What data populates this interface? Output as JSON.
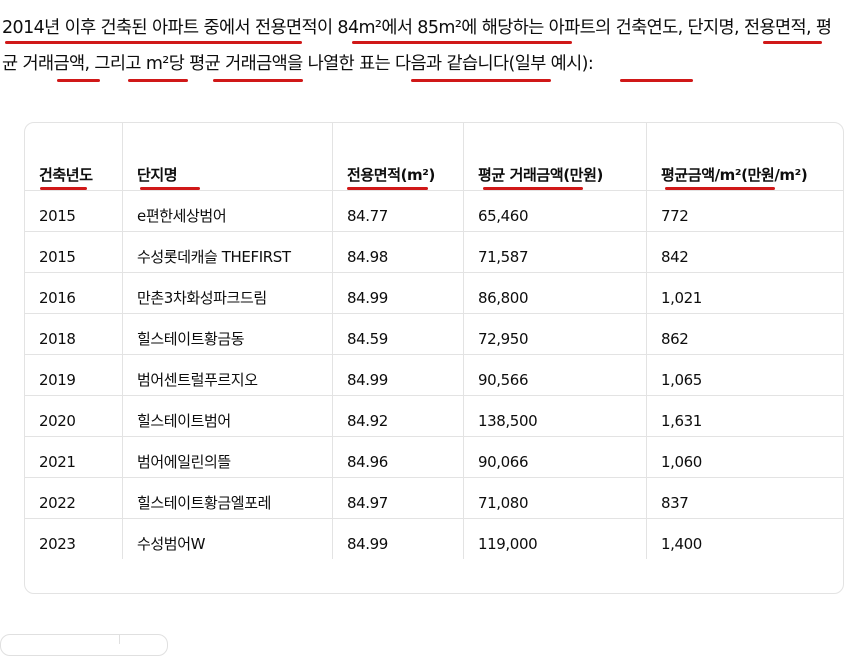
{
  "intro": "2014년 이후 건축된 아파트 중에서 전용면적이 84m²에서 85m²에 해당하는 아파트의 건축연도, 단지명, 전용면적, 평균 거래금액, 그리고 m²당 평균 거래금액을 나열한 표는 다음과 같습니다(일부 예시):",
  "table": {
    "headers": [
      "건축년도",
      "단지명",
      "전용면적(m²)",
      "평균 거래금액(만원)",
      "평균금액/m²(만원/m²)"
    ],
    "rows": [
      [
        "2015",
        "e편한세상범어",
        "84.77",
        "65,460",
        "772"
      ],
      [
        "2015",
        "수성롯데캐슬 THEFIRST",
        "84.98",
        "71,587",
        "842"
      ],
      [
        "2016",
        "만촌3차화성파크드림",
        "84.99",
        "86,800",
        "1,021"
      ],
      [
        "2018",
        "힐스테이트황금동",
        "84.59",
        "72,950",
        "862"
      ],
      [
        "2019",
        "범어센트럴푸르지오",
        "84.99",
        "90,566",
        "1,065"
      ],
      [
        "2020",
        "힐스테이트범어",
        "84.92",
        "138,500",
        "1,631"
      ],
      [
        "2021",
        "범어에일린의뜰",
        "84.96",
        "90,066",
        "1,060"
      ],
      [
        "2022",
        "힐스테이트황금엘포레",
        "84.97",
        "71,080",
        "837"
      ],
      [
        "2023",
        "수성범어W",
        "84.99",
        "119,000",
        "1,400"
      ]
    ]
  },
  "annotation_color": "#d01818"
}
